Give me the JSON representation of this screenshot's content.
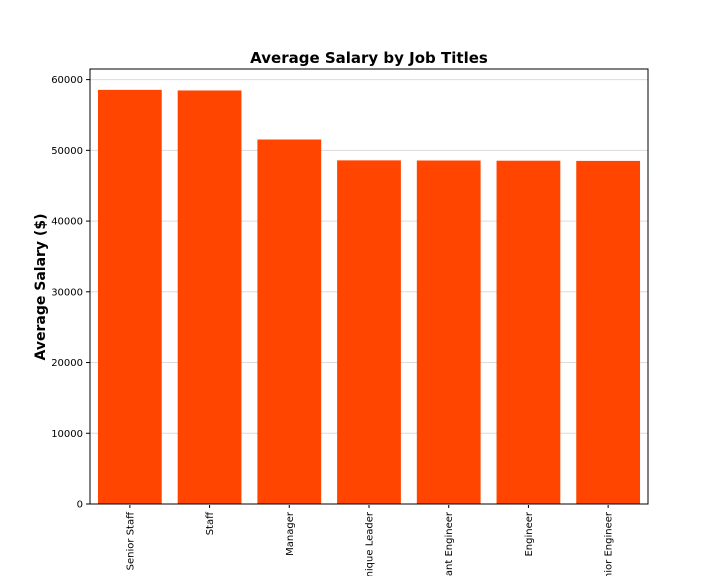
{
  "chart_data": {
    "type": "bar",
    "title": "Average Salary by Job Titles",
    "xlabel": "",
    "ylabel": "Average Salary ($)",
    "categories": [
      "Senior Staff",
      "Staff",
      "Manager",
      "Technique Leader",
      "Assistant Engineer",
      "Engineer",
      "Senior Engineer"
    ],
    "values": [
      58550,
      58465,
      51531,
      48583,
      48564,
      48535,
      48507
    ],
    "ylim": [
      0,
      61500
    ],
    "yticks": [
      0,
      10000,
      20000,
      30000,
      40000,
      50000,
      60000
    ],
    "grid": "horizontal",
    "bar_color": "#ff4500",
    "gridline_color": "#dcdcdc"
  }
}
